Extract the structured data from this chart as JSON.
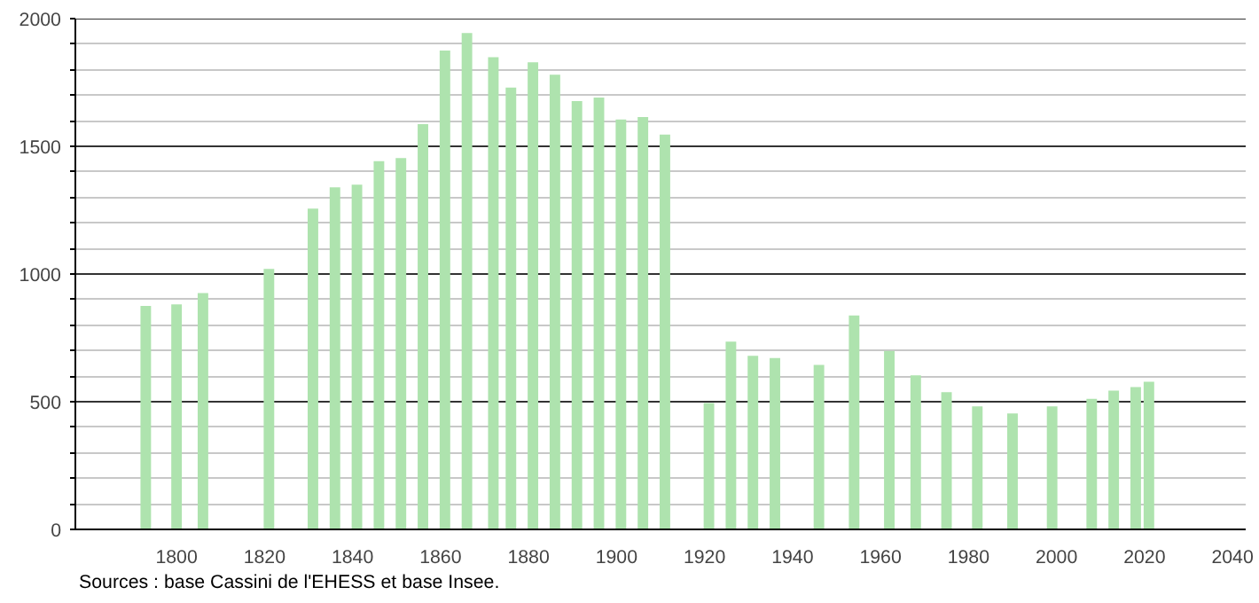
{
  "chart_data": {
    "type": "bar",
    "x": [
      1793,
      1800,
      1806,
      1821,
      1831,
      1836,
      1841,
      1846,
      1851,
      1856,
      1861,
      1866,
      1872,
      1876,
      1881,
      1886,
      1891,
      1896,
      1901,
      1906,
      1911,
      1921,
      1926,
      1931,
      1936,
      1946,
      1954,
      1962,
      1968,
      1975,
      1982,
      1990,
      1999,
      2008,
      2013,
      2018,
      2021
    ],
    "values": [
      875,
      881,
      925,
      1020,
      1256,
      1339,
      1350,
      1442,
      1454,
      1587,
      1875,
      1944,
      1849,
      1730,
      1829,
      1780,
      1677,
      1691,
      1605,
      1615,
      1546,
      495,
      735,
      680,
      671,
      644,
      838,
      699,
      603,
      537,
      482,
      454,
      482,
      511,
      543,
      557,
      578
    ],
    "color": "#aee3ae",
    "xlim": [
      1777,
      2043
    ],
    "xticks": [
      1800,
      1820,
      1840,
      1860,
      1880,
      1900,
      1920,
      1940,
      1960,
      1980,
      2000,
      2020,
      2040
    ],
    "ylim": [
      0,
      2000
    ],
    "yticks": [
      0,
      {
        "value": 100,
        "label": null
      },
      {
        "value": 200,
        "label": null
      },
      {
        "value": 300,
        "label": null
      },
      {
        "value": 400,
        "label": null
      },
      500,
      {
        "value": 600,
        "label": null
      },
      {
        "value": 700,
        "label": null
      },
      {
        "value": 800,
        "label": null
      },
      {
        "value": 900,
        "label": null
      },
      1000,
      {
        "value": 1100,
        "label": null
      },
      {
        "value": 1200,
        "label": null
      },
      {
        "value": 1300,
        "label": null
      },
      {
        "value": 1400,
        "label": null
      },
      1500,
      {
        "value": 1600,
        "label": null
      },
      {
        "value": 1700,
        "label": null
      },
      {
        "value": 1800,
        "label": null
      },
      {
        "value": 1900,
        "label": null
      },
      2000
    ],
    "grid": "y",
    "annotations": [
      "Sources : base Cassini de l'EHESS et base Insee."
    ]
  }
}
